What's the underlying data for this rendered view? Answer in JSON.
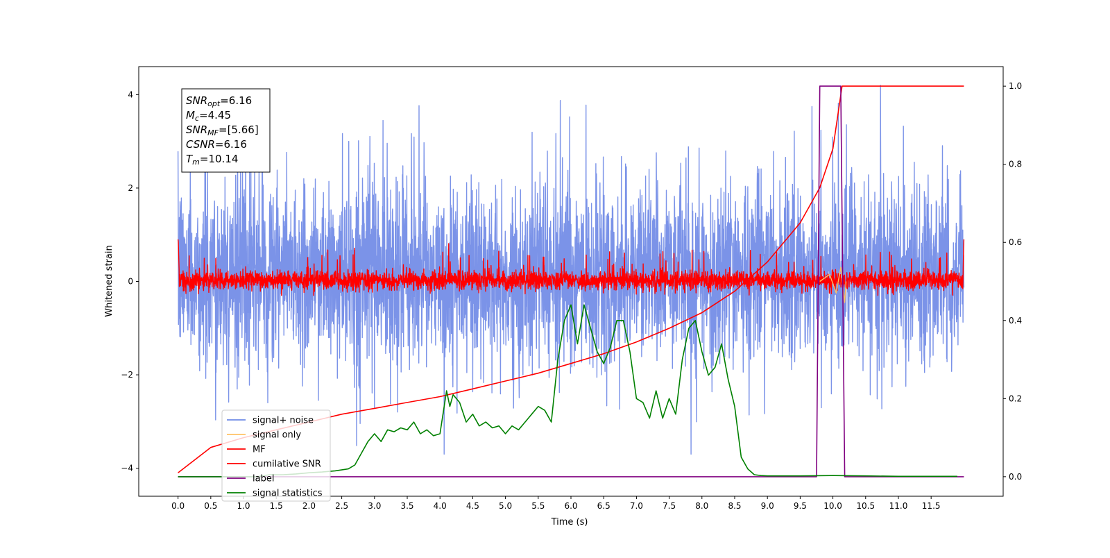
{
  "chart_data": {
    "type": "line",
    "xlabel": "Time (s)",
    "ylabel": "Whitened strain",
    "ylabel_right": "",
    "xlim": [
      -0.6,
      12.6
    ],
    "ylim_left": [
      -4.6,
      4.6
    ],
    "ylim_right": [
      -0.05,
      1.05
    ],
    "x_ticks": [
      "0.0",
      "0.5",
      "1.0",
      "1.5",
      "2.0",
      "2.5",
      "3.0",
      "3.5",
      "4.0",
      "4.5",
      "5.0",
      "5.5",
      "6.0",
      "6.5",
      "7.0",
      "7.5",
      "8.0",
      "8.5",
      "9.0",
      "9.5",
      "10.0",
      "10.5",
      "11.0",
      "11.5"
    ],
    "y_ticks_left": [
      "4",
      "2",
      "0",
      "−2",
      "−4"
    ],
    "y_ticks_right": [
      "1.0",
      "0.8",
      "0.6",
      "0.4",
      "0.2",
      "0.0"
    ],
    "annotation": {
      "lines": [
        {
          "var": "SNR",
          "sub": "opt",
          "value": "=6.16"
        },
        {
          "var": "M",
          "sub": "c",
          "value": "=4.45"
        },
        {
          "var": "SNR",
          "sub": "MF",
          "value": "=[5.66]"
        },
        {
          "var": "CSNR",
          "sub": "",
          "value": "=6.16"
        },
        {
          "var": "T",
          "sub": "m",
          "value": "=10.14"
        }
      ]
    },
    "legend": {
      "placement": "lower-left",
      "entries": [
        {
          "label": "signal+ noise",
          "color": "#6f8ce6"
        },
        {
          "label": "signal only",
          "color": "#ffc266"
        },
        {
          "label": "MF",
          "color": "#ff0000"
        },
        {
          "label": "cumilative SNR",
          "color": "#ff0000"
        },
        {
          "label": "label",
          "color": "#800080"
        },
        {
          "label": "signal statistics",
          "color": "#008000"
        }
      ]
    },
    "series": [
      {
        "name": "signal+ noise",
        "axis": "left",
        "color": "#7b93e8",
        "description": "whitened noise, amplitude ~1, spikes to about ±4, spans 0–12 s",
        "x_range": [
          0,
          12
        ],
        "envelope": {
          "core": [
            -1.4,
            1.6
          ],
          "peak_max": 4.2,
          "peak_min": -3.7
        }
      },
      {
        "name": "signal only",
        "axis": "left",
        "color": "#ffc266",
        "description": "chirp visible near merger",
        "points": [
          [
            9.8,
            0
          ],
          [
            9.95,
            0.15
          ],
          [
            10.05,
            -0.25
          ],
          [
            10.12,
            0.3
          ],
          [
            10.18,
            -0.45
          ],
          [
            10.2,
            0
          ]
        ]
      },
      {
        "name": "MF",
        "axis": "left",
        "color": "#ff0000",
        "description": "matched filter output, noisy around 0, band about -0.2 to 0.4",
        "x_range": [
          0,
          12
        ],
        "envelope": {
          "core": [
            -0.2,
            0.35
          ],
          "peak_max": 0.9,
          "peak_min": -0.3
        }
      },
      {
        "name": "cumilative SNR",
        "axis": "right",
        "color": "#ff0000",
        "x": [
          0.0,
          0.5,
          1.0,
          1.5,
          2.0,
          2.5,
          3.0,
          3.5,
          4.0,
          4.5,
          5.0,
          5.5,
          6.0,
          6.5,
          7.0,
          7.5,
          8.0,
          8.5,
          9.0,
          9.5,
          9.8,
          10.0,
          10.14,
          11.5,
          12.0
        ],
        "y": [
          0.01,
          0.075,
          0.1,
          0.12,
          0.14,
          0.16,
          0.175,
          0.19,
          0.205,
          0.225,
          0.245,
          0.265,
          0.29,
          0.315,
          0.345,
          0.38,
          0.42,
          0.475,
          0.55,
          0.65,
          0.74,
          0.84,
          1.0,
          1.0,
          1.0
        ]
      },
      {
        "name": "label",
        "axis": "right",
        "color": "#800080",
        "x": [
          0.0,
          9.75,
          9.8,
          10.12,
          10.18,
          12.0
        ],
        "y": [
          0.0,
          0.0,
          1.0,
          1.0,
          0.0,
          0.0
        ]
      },
      {
        "name": "signal statistics",
        "axis": "right",
        "color": "#008000",
        "x": [
          0.0,
          0.2,
          0.4,
          0.6,
          0.8,
          1.0,
          1.2,
          1.4,
          1.6,
          1.8,
          2.0,
          2.2,
          2.4,
          2.6,
          2.7,
          2.8,
          2.9,
          3.0,
          3.1,
          3.2,
          3.3,
          3.4,
          3.5,
          3.6,
          3.7,
          3.8,
          3.9,
          4.0,
          4.1,
          4.15,
          4.2,
          4.3,
          4.4,
          4.5,
          4.6,
          4.7,
          4.8,
          4.9,
          5.0,
          5.1,
          5.2,
          5.3,
          5.4,
          5.5,
          5.6,
          5.7,
          5.8,
          5.9,
          6.0,
          6.1,
          6.2,
          6.3,
          6.4,
          6.5,
          6.6,
          6.7,
          6.8,
          6.9,
          7.0,
          7.1,
          7.2,
          7.3,
          7.4,
          7.5,
          7.6,
          7.7,
          7.8,
          7.9,
          8.0,
          8.1,
          8.2,
          8.3,
          8.4,
          8.5,
          8.6,
          8.7,
          8.8,
          8.9,
          9.0,
          9.5,
          10.0,
          10.5,
          11.0,
          11.5,
          11.9
        ],
        "y": [
          0.0,
          0.0,
          0.0,
          0.0,
          0.0,
          0.0,
          0.0,
          0.005,
          0.005,
          0.007,
          0.01,
          0.012,
          0.015,
          0.02,
          0.03,
          0.06,
          0.09,
          0.11,
          0.09,
          0.12,
          0.115,
          0.125,
          0.12,
          0.14,
          0.11,
          0.12,
          0.105,
          0.11,
          0.22,
          0.18,
          0.21,
          0.19,
          0.14,
          0.16,
          0.13,
          0.14,
          0.125,
          0.13,
          0.11,
          0.13,
          0.12,
          0.14,
          0.16,
          0.18,
          0.17,
          0.14,
          0.3,
          0.4,
          0.44,
          0.34,
          0.44,
          0.38,
          0.32,
          0.29,
          0.33,
          0.4,
          0.4,
          0.32,
          0.2,
          0.19,
          0.15,
          0.22,
          0.15,
          0.2,
          0.16,
          0.3,
          0.38,
          0.4,
          0.32,
          0.26,
          0.28,
          0.34,
          0.25,
          0.18,
          0.05,
          0.02,
          0.005,
          0.003,
          0.002,
          0.002,
          0.003,
          0.002,
          0.001,
          0.001,
          0.001
        ]
      }
    ]
  }
}
